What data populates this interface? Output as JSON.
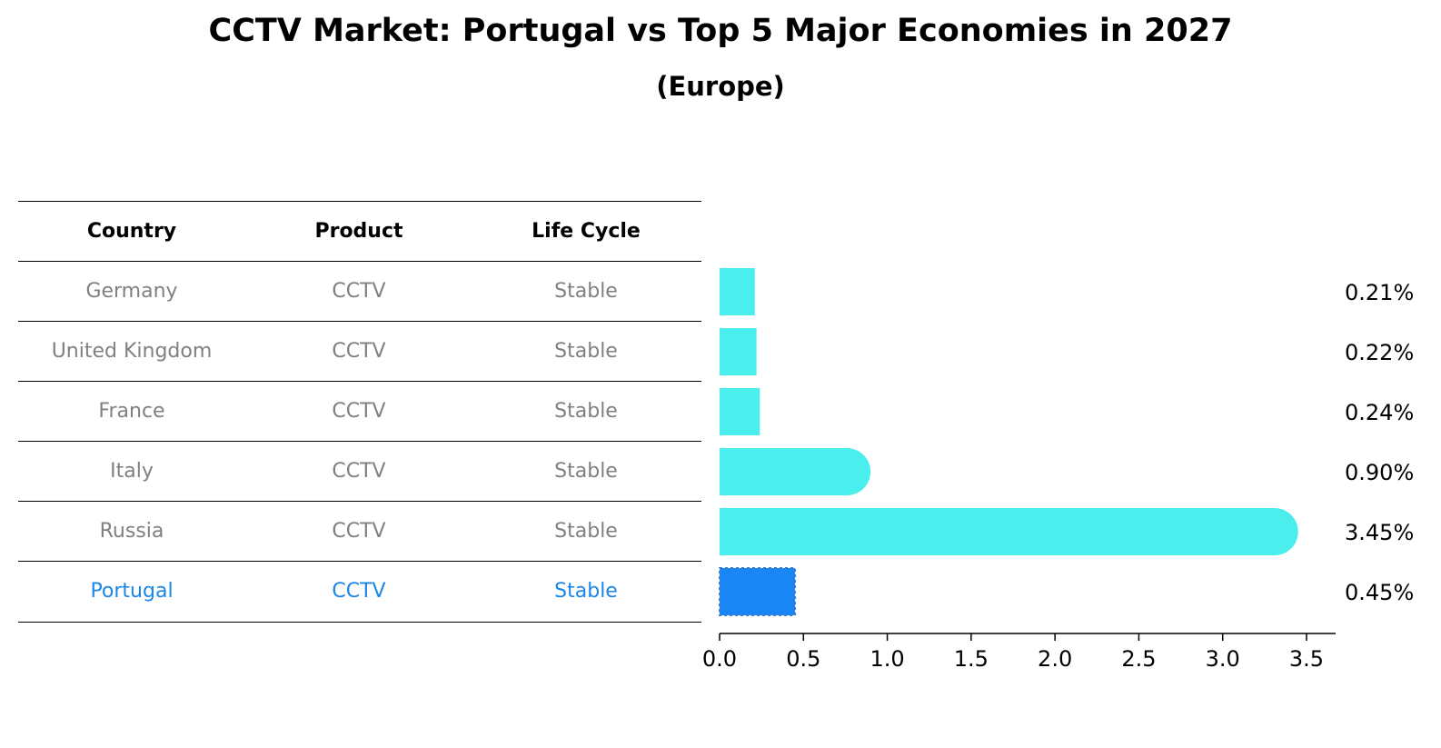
{
  "title": "CCTV Market: Portugal vs Top 5 Major Economies in 2027",
  "subtitle": "(Europe)",
  "table": {
    "headers": [
      "Country",
      "Product",
      "Life Cycle"
    ],
    "rows": [
      {
        "country": "Germany",
        "product": "CCTV",
        "life_cycle": "Stable"
      },
      {
        "country": "United Kingdom",
        "product": "CCTV",
        "life_cycle": "Stable"
      },
      {
        "country": "France",
        "product": "CCTV",
        "life_cycle": "Stable"
      },
      {
        "country": "Italy",
        "product": "CCTV",
        "life_cycle": "Stable"
      },
      {
        "country": "Russia",
        "product": "CCTV",
        "life_cycle": "Stable"
      },
      {
        "country": "Portugal",
        "product": "CCTV",
        "life_cycle": "Stable"
      }
    ]
  },
  "colors": {
    "bar": "#4aeeed",
    "highlight": "#1a86f5",
    "highlight_text": "#1a86e8",
    "muted_text": "#808080"
  },
  "chart_data": {
    "type": "bar",
    "orientation": "horizontal",
    "categories": [
      "Germany",
      "United Kingdom",
      "France",
      "Italy",
      "Russia",
      "Portugal"
    ],
    "values": [
      0.21,
      0.22,
      0.24,
      0.9,
      3.45,
      0.45
    ],
    "value_labels": [
      "0.21%",
      "0.22%",
      "0.24%",
      "0.90%",
      "3.45%",
      "0.45%"
    ],
    "highlight": "Portugal",
    "xlim": [
      0,
      3.6
    ],
    "xticks": [
      0.0,
      0.5,
      1.0,
      1.5,
      2.0,
      2.5,
      3.0,
      3.5
    ],
    "xtick_labels": [
      "0.0",
      "0.5",
      "1.0",
      "1.5",
      "2.0",
      "2.5",
      "3.0",
      "3.5"
    ],
    "xlabel": "",
    "ylabel": "",
    "grid": false,
    "legend": "none"
  }
}
